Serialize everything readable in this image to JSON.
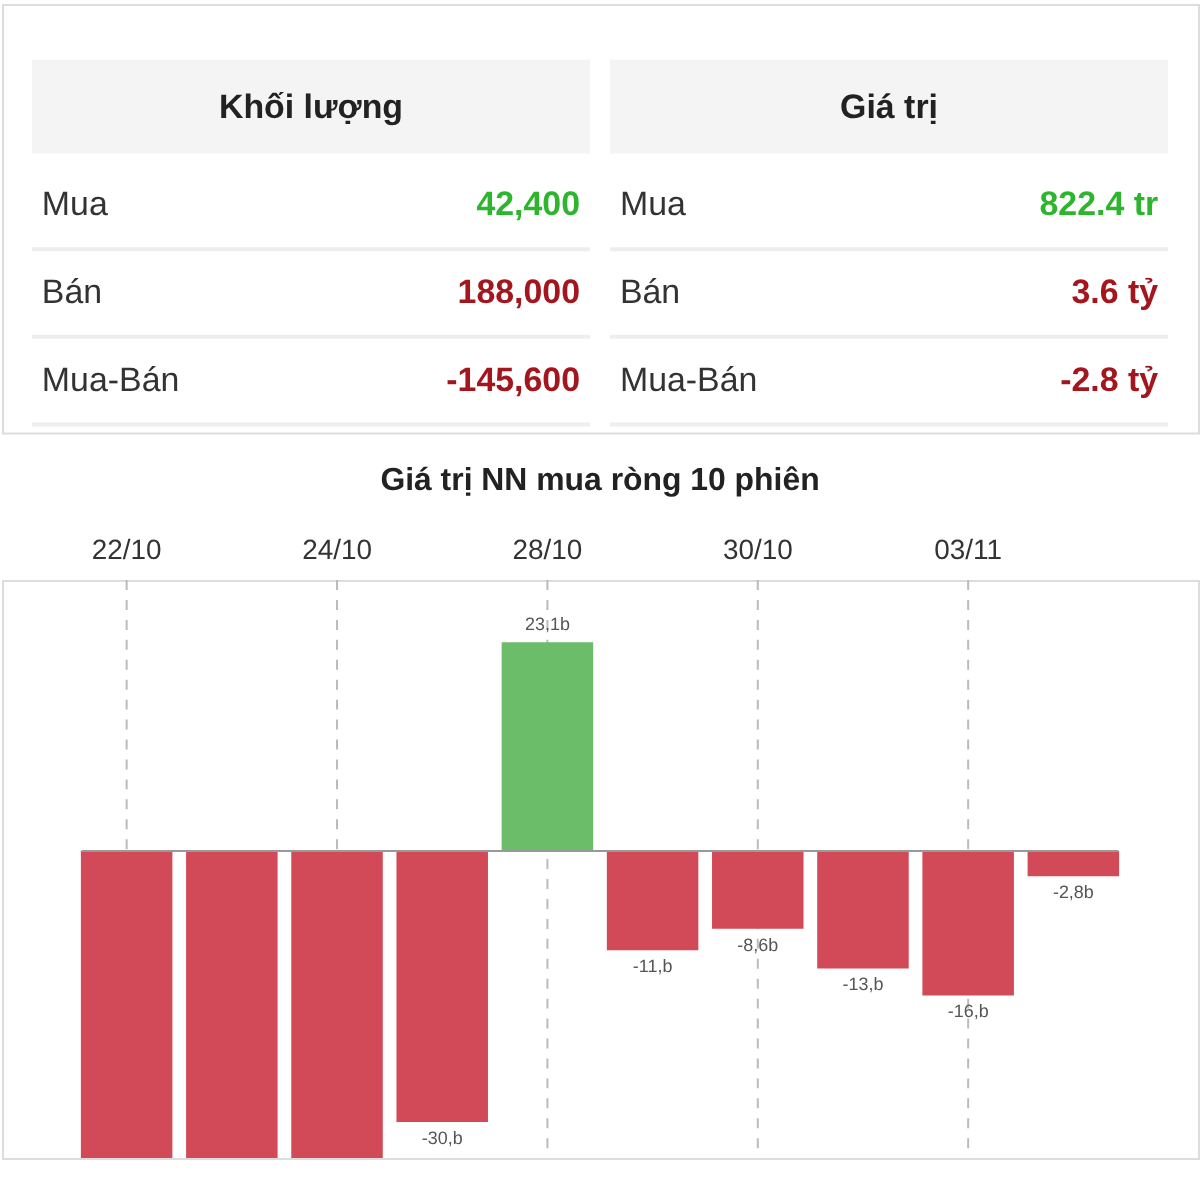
{
  "chart_data": [
    {
      "type": "other",
      "annotations": [
        "Khối lượng",
        "Giá trị",
        "Mua",
        "42,400",
        "Mua",
        "822.4 tr",
        "Bán",
        "188,000",
        "Bán",
        "3.6 tỷ",
        "Mua-Bán",
        "-145,600",
        "Mua-Bán",
        "-2.8 tỷ"
      ],
      "colors": [
        "#222222",
        "#222222",
        "#333333",
        "#2db52d",
        "#333333",
        "#2db52d",
        "#333333",
        "#a3161e",
        "#333333",
        "#a3161e",
        "#333333",
        "#a3161e",
        "#333333",
        "#a3161e"
      ]
    },
    {
      "type": "bar",
      "title": "Giá trị NN mua ròng 10 phiên",
      "categories": [
        "22/10",
        null,
        "24/10",
        null,
        "28/10",
        null,
        "30/10",
        null,
        "03/11",
        null
      ],
      "values": [
        -34,
        -34,
        -34,
        -30,
        23.1,
        -11,
        -8.6,
        -13,
        -16,
        -2.8
      ],
      "value_labels": [
        null,
        null,
        null,
        "-30,b",
        "23,1b",
        "-11,b",
        "-8,6b",
        "-13,b",
        "-16,b",
        "-2,8b"
      ],
      "colors": [
        "#d24a57",
        "#d24a57",
        "#d24a57",
        "#d24a57",
        "#6cbd6a",
        "#d24a57",
        "#d24a57",
        "#d24a57",
        "#d24a57",
        "#d24a57"
      ],
      "ylim": [
        -34,
        30
      ],
      "grid": "x",
      "tick_labels": "x"
    }
  ]
}
